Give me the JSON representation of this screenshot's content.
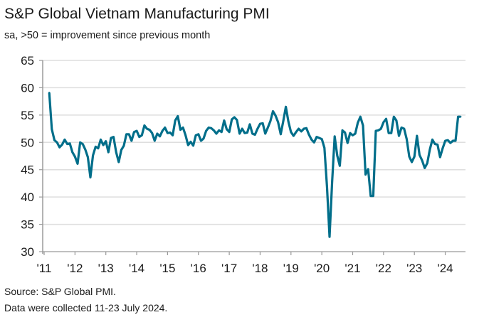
{
  "chart_data": {
    "type": "line",
    "title": "S&P Global Vietnam Manufacturing PMI",
    "subtitle": "sa, >50 = improvement since previous month",
    "ylim": [
      30,
      65
    ],
    "yticks": [
      "65",
      "60",
      "55",
      "50",
      "45",
      "40",
      "35",
      "30"
    ],
    "xtick_labels": [
      "'11",
      "'12",
      "'13",
      "'14",
      "'15",
      "'16",
      "'17",
      "'18",
      "'19",
      "'20",
      "'21",
      "'22",
      "'23",
      "'24"
    ],
    "grid": "horizontal",
    "line_color": "#006e8a",
    "start": "2011-03",
    "frequency": "monthly",
    "values": [
      59.1,
      52.4,
      50.4,
      50.0,
      49.1,
      49.6,
      50.5,
      49.7,
      49.8,
      48.2,
      47.4,
      46.1,
      50.0,
      49.7,
      48.7,
      47.3,
      43.6,
      47.6,
      49.2,
      48.9,
      50.5,
      49.5,
      50.2,
      48.2,
      50.8,
      51.0,
      48.2,
      46.4,
      48.6,
      49.4,
      51.5,
      51.5,
      50.3,
      51.9,
      52.1,
      51.0,
      51.3,
      53.1,
      52.5,
      52.3,
      51.7,
      50.3,
      51.6,
      51.1,
      52.1,
      52.7,
      51.7,
      51.8,
      51.3,
      54.0,
      54.8,
      52.3,
      52.7,
      51.3,
      49.5,
      50.1,
      49.4,
      51.3,
      51.5,
      50.3,
      50.7,
      52.1,
      52.7,
      52.6,
      52.2,
      51.6,
      52.2,
      51.9,
      54.0,
      52.4,
      51.9,
      54.2,
      54.6,
      54.1,
      51.6,
      52.5,
      51.7,
      51.8,
      53.3,
      51.6,
      51.4,
      52.5,
      53.4,
      53.5,
      51.6,
      52.7,
      53.9,
      55.7,
      54.9,
      53.7,
      51.5,
      53.9,
      56.5,
      53.8,
      51.9,
      51.2,
      51.9,
      52.5,
      52.0,
      52.5,
      52.6,
      51.4,
      50.5,
      50.0,
      51.0,
      50.8,
      50.6,
      49.0,
      41.9,
      32.7,
      42.7,
      51.1,
      47.6,
      45.7,
      52.2,
      51.8,
      49.9,
      51.7,
      51.3,
      51.6,
      53.6,
      54.7,
      53.1,
      44.1,
      45.1,
      40.2,
      40.2,
      52.1,
      52.2,
      52.5,
      53.7,
      54.3,
      51.7,
      51.7,
      54.7,
      54.0,
      51.2,
      52.7,
      52.5,
      50.6,
      47.4,
      46.4,
      47.4,
      51.2,
      47.7,
      46.7,
      45.3,
      46.2,
      48.7,
      50.5,
      49.7,
      49.6,
      47.3,
      48.9,
      50.3,
      50.4,
      49.9,
      50.3,
      50.3,
      54.7,
      54.7
    ]
  },
  "footer": {
    "source": "Source: S&P Global PMI.",
    "note": "Data were collected 11-23 July 2024."
  }
}
